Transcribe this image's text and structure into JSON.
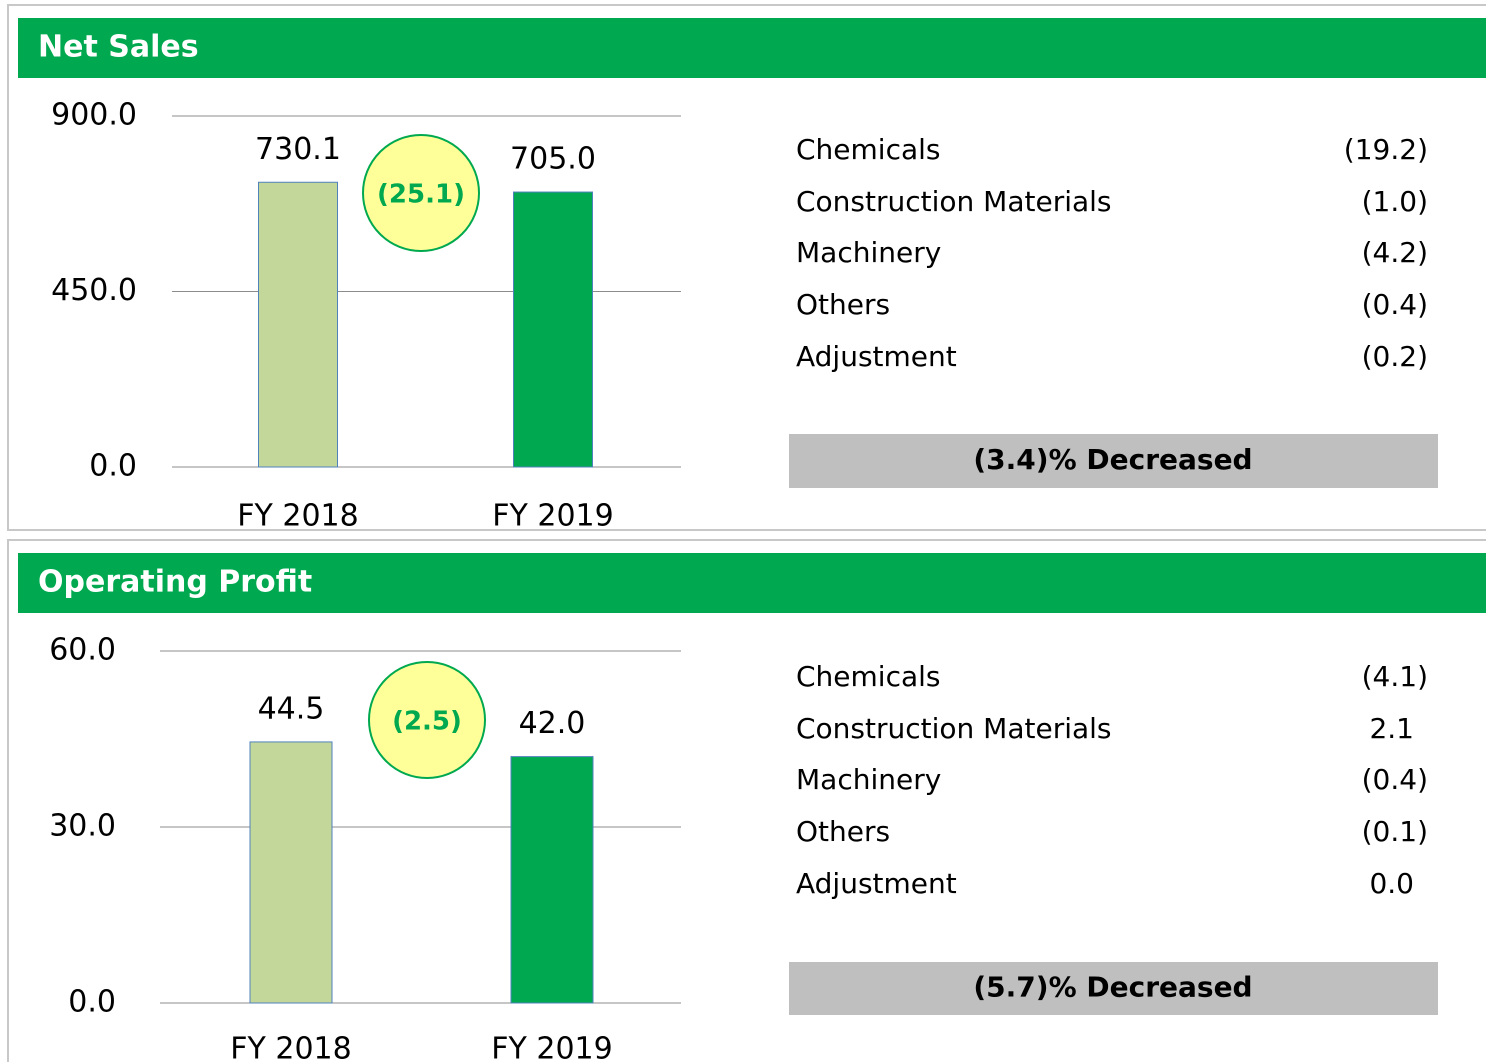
{
  "chart_data": [
    {
      "type": "bar",
      "title": "Net Sales",
      "categories": [
        "FY 2018",
        "FY 2019"
      ],
      "values": [
        730.1,
        705.0
      ],
      "value_labels": [
        "730.1",
        "705.0"
      ],
      "colors": [
        "#c4d79b",
        "#00a94f"
      ],
      "ylim": [
        0,
        900
      ],
      "yticks": [
        {
          "value": 0,
          "label": "0.0"
        },
        {
          "value": 450,
          "label": "450.0"
        },
        {
          "value": 900,
          "label": "900.0"
        }
      ],
      "grid": true,
      "annotation": "(25.1)",
      "breakdown": [
        {
          "label": "Chemicals",
          "value": "(19.2)"
        },
        {
          "label": "Construction Materials",
          "value": "(1.0)"
        },
        {
          "label": "Machinery",
          "value": "(4.2)"
        },
        {
          "label": "Others",
          "value": "(0.4)"
        },
        {
          "label": "Adjustment",
          "value": "(0.2)"
        }
      ],
      "summary": "(3.4)% Decreased"
    },
    {
      "type": "bar",
      "title": "Operating Profit",
      "categories": [
        "FY 2018",
        "FY 2019"
      ],
      "values": [
        44.5,
        42.0
      ],
      "value_labels": [
        "44.5",
        "42.0"
      ],
      "colors": [
        "#c4d79b",
        "#00a94f"
      ],
      "ylim": [
        0,
        60
      ],
      "yticks": [
        {
          "value": 0,
          "label": "0.0"
        },
        {
          "value": 30,
          "label": "30.0"
        },
        {
          "value": 60,
          "label": "60.0"
        }
      ],
      "grid": true,
      "annotation": "(2.5)",
      "breakdown": [
        {
          "label": "Chemicals",
          "value": "(4.1)"
        },
        {
          "label": "Construction Materials",
          "value": "2.1"
        },
        {
          "label": "Machinery",
          "value": "(0.4)"
        },
        {
          "label": "Others",
          "value": "(0.1)"
        },
        {
          "label": "Adjustment",
          "value": "0.0"
        }
      ],
      "summary": "(5.7)% Decreased"
    }
  ]
}
